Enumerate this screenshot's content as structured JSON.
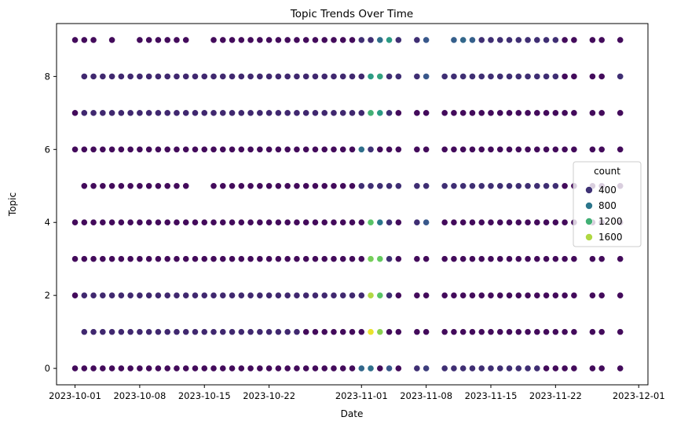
{
  "chart_data": {
    "type": "scatter",
    "title": "Topic Trends Over Time",
    "xlabel": "Date",
    "ylabel": "Topic",
    "x_range": [
      "2023-09-29",
      "2023-12-02"
    ],
    "ylim": [
      -0.45,
      9.45
    ],
    "x_ticks": [
      "2023-10-01",
      "2023-10-08",
      "2023-10-15",
      "2023-10-22",
      "2023-11-01",
      "2023-11-08",
      "2023-11-15",
      "2023-11-22",
      "2023-12-01"
    ],
    "y_ticks": [
      0,
      2,
      4,
      6,
      8
    ],
    "grid": false,
    "legend": {
      "title": "count",
      "placement": "center-right",
      "entries": [
        {
          "label": "400",
          "value": 400
        },
        {
          "label": "800",
          "value": 800
        },
        {
          "label": "1200",
          "value": 1200
        },
        {
          "label": "1600",
          "value": 1600
        }
      ]
    },
    "color_scale": {
      "name": "viridis",
      "min": 150,
      "max": 1800
    },
    "topics": [
      0,
      1,
      2,
      3,
      4,
      5,
      6,
      7,
      8,
      9
    ],
    "dates": [
      "2023-10-01",
      "2023-10-02",
      "2023-10-03",
      "2023-10-04",
      "2023-10-05",
      "2023-10-06",
      "2023-10-07",
      "2023-10-08",
      "2023-10-09",
      "2023-10-10",
      "2023-10-11",
      "2023-10-12",
      "2023-10-13",
      "2023-10-14",
      "2023-10-15",
      "2023-10-16",
      "2023-10-17",
      "2023-10-18",
      "2023-10-19",
      "2023-10-20",
      "2023-10-21",
      "2023-10-22",
      "2023-10-23",
      "2023-10-24",
      "2023-10-25",
      "2023-10-26",
      "2023-10-27",
      "2023-10-28",
      "2023-10-29",
      "2023-10-30",
      "2023-10-31",
      "2023-11-01",
      "2023-11-02",
      "2023-11-03",
      "2023-11-04",
      "2023-11-05",
      "2023-11-07",
      "2023-11-08",
      "2023-11-10",
      "2023-11-11",
      "2023-11-12",
      "2023-11-13",
      "2023-11-14",
      "2023-11-15",
      "2023-11-16",
      "2023-11-17",
      "2023-11-18",
      "2023-11-19",
      "2023-11-20",
      "2023-11-21",
      "2023-11-22",
      "2023-11-23",
      "2023-11-24",
      "2023-11-26",
      "2023-11-27",
      "2023-11-29"
    ],
    "counts": {
      "0": [
        200,
        200,
        200,
        200,
        200,
        200,
        200,
        200,
        200,
        200,
        200,
        200,
        200,
        200,
        200,
        200,
        200,
        200,
        200,
        200,
        200,
        200,
        200,
        200,
        200,
        200,
        200,
        200,
        200,
        200,
        200,
        700,
        750,
        200,
        600,
        200,
        380,
        460,
        380,
        380,
        380,
        380,
        380,
        380,
        380,
        380,
        380,
        380,
        380,
        200,
        200,
        200,
        200,
        200,
        200,
        200
      ],
      "1": [
        200,
        350,
        350,
        350,
        350,
        350,
        350,
        350,
        350,
        350,
        350,
        350,
        350,
        350,
        350,
        350,
        350,
        350,
        350,
        350,
        350,
        350,
        350,
        350,
        350,
        200,
        200,
        200,
        200,
        200,
        200,
        200,
        1750,
        1500,
        200,
        200,
        200,
        200,
        200,
        200,
        200,
        200,
        200,
        200,
        200,
        200,
        200,
        200,
        200,
        200,
        200,
        200,
        200,
        200,
        200,
        200
      ],
      "2": [
        200,
        350,
        350,
        350,
        350,
        350,
        350,
        350,
        350,
        350,
        350,
        350,
        350,
        350,
        350,
        350,
        350,
        350,
        350,
        350,
        350,
        350,
        350,
        350,
        350,
        350,
        350,
        350,
        350,
        350,
        350,
        350,
        1600,
        1350,
        380,
        200,
        200,
        200,
        200,
        200,
        200,
        200,
        200,
        200,
        200,
        200,
        200,
        200,
        200,
        200,
        200,
        200,
        200,
        200,
        200,
        200
      ],
      "3": [
        200,
        200,
        200,
        200,
        200,
        200,
        200,
        200,
        200,
        200,
        200,
        200,
        200,
        200,
        200,
        200,
        200,
        200,
        200,
        200,
        200,
        200,
        200,
        200,
        200,
        200,
        200,
        200,
        200,
        200,
        200,
        200,
        1450,
        1400,
        380,
        200,
        200,
        200,
        200,
        200,
        200,
        200,
        200,
        200,
        200,
        200,
        200,
        200,
        200,
        200,
        200,
        200,
        200,
        200,
        200,
        200
      ],
      "4": [
        200,
        200,
        200,
        200,
        200,
        200,
        200,
        200,
        200,
        200,
        200,
        200,
        200,
        200,
        200,
        200,
        200,
        200,
        200,
        200,
        200,
        200,
        200,
        200,
        200,
        200,
        200,
        200,
        200,
        200,
        200,
        200,
        1350,
        800,
        380,
        200,
        380,
        600,
        200,
        200,
        200,
        200,
        200,
        200,
        200,
        200,
        200,
        200,
        200,
        200,
        200,
        200,
        200,
        200,
        200,
        200
      ],
      "5": [
        200,
        200,
        200,
        200,
        200,
        200,
        200,
        200,
        200,
        200,
        200,
        200,
        200,
        200,
        200,
        200,
        200,
        200,
        200,
        200,
        200,
        200,
        200,
        200,
        200,
        200,
        200,
        200,
        200,
        200,
        200,
        380,
        380,
        380,
        380,
        380,
        380,
        380,
        380,
        380,
        380,
        380,
        380,
        380,
        380,
        380,
        380,
        380,
        380,
        380,
        380,
        200,
        200,
        200,
        200,
        200
      ],
      "6": [
        200,
        200,
        200,
        200,
        200,
        200,
        200,
        200,
        200,
        200,
        200,
        200,
        200,
        200,
        200,
        200,
        200,
        200,
        200,
        200,
        200,
        200,
        200,
        200,
        200,
        200,
        200,
        200,
        200,
        200,
        200,
        750,
        400,
        200,
        200,
        200,
        200,
        200,
        200,
        200,
        200,
        200,
        200,
        200,
        200,
        200,
        200,
        200,
        200,
        200,
        200,
        200,
        200,
        200,
        200,
        200
      ],
      "7": [
        200,
        350,
        350,
        350,
        350,
        350,
        350,
        350,
        350,
        350,
        350,
        350,
        350,
        350,
        350,
        350,
        350,
        350,
        350,
        350,
        350,
        350,
        350,
        350,
        350,
        350,
        350,
        350,
        350,
        350,
        350,
        350,
        1200,
        1050,
        380,
        200,
        200,
        200,
        200,
        200,
        200,
        200,
        200,
        200,
        200,
        200,
        200,
        200,
        200,
        200,
        200,
        200,
        200,
        200,
        200,
        200
      ],
      "8": [
        200,
        350,
        350,
        350,
        350,
        350,
        350,
        350,
        350,
        350,
        350,
        350,
        350,
        350,
        350,
        350,
        350,
        350,
        350,
        350,
        350,
        350,
        350,
        350,
        350,
        350,
        350,
        350,
        350,
        350,
        350,
        350,
        1050,
        1100,
        380,
        380,
        380,
        600,
        380,
        380,
        380,
        380,
        380,
        380,
        380,
        380,
        380,
        380,
        380,
        380,
        380,
        200,
        200,
        200,
        200,
        380
      ],
      "9": [
        200,
        200,
        200,
        200,
        200,
        200,
        200,
        200,
        200,
        200,
        200,
        200,
        200,
        200,
        200,
        200,
        200,
        200,
        200,
        200,
        200,
        200,
        200,
        200,
        200,
        200,
        200,
        200,
        200,
        200,
        200,
        380,
        380,
        750,
        1050,
        380,
        380,
        600,
        380,
        650,
        700,
        650,
        380,
        380,
        380,
        380,
        380,
        380,
        380,
        380,
        380,
        200,
        200,
        200,
        200,
        200
      ]
    },
    "missing": {
      "9": [
        "2023-10-04",
        "2023-10-06",
        "2023-10-07",
        "2023-10-14",
        "2023-10-15",
        "2023-11-10"
      ],
      "8": [
        "2023-10-01"
      ],
      "5": [
        "2023-10-01",
        "2023-10-14",
        "2023-10-15"
      ],
      "1": [
        "2023-10-01"
      ]
    }
  }
}
